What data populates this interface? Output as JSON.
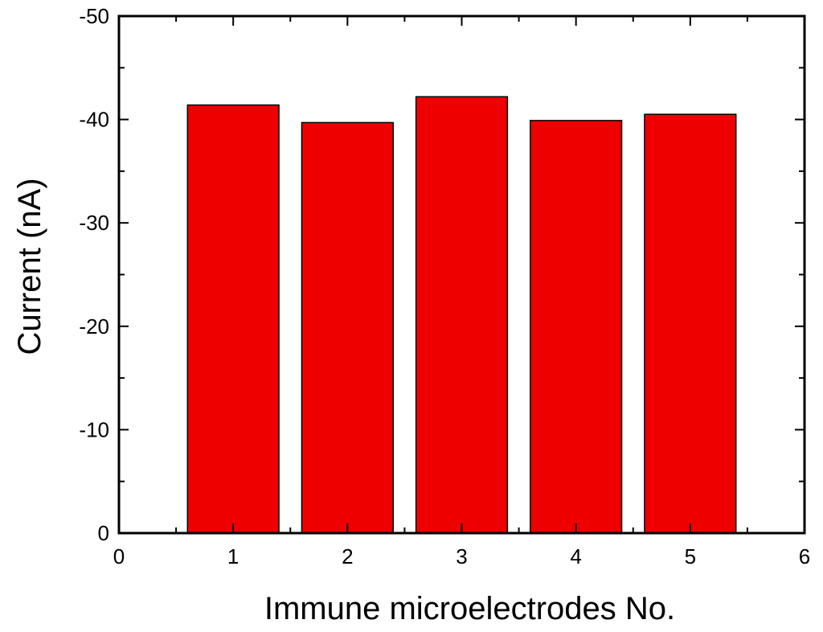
{
  "chart_data": {
    "type": "bar",
    "title": "",
    "xlabel": "Immune microelectrodes No.",
    "ylabel": "Current (nA)",
    "x": [
      1,
      2,
      3,
      4,
      5
    ],
    "values": [
      -41.4,
      -39.7,
      -42.2,
      -39.9,
      -40.5
    ],
    "xlim": [
      0,
      6
    ],
    "ylim": [
      0,
      -50
    ],
    "y_axis_reversed": true,
    "xticks": [
      "0",
      "1",
      "2",
      "3",
      "4",
      "5",
      "6"
    ],
    "yticks": [
      "0",
      "-10",
      "-20",
      "-30",
      "-40",
      "-50"
    ],
    "bar_color": "#ee0000",
    "grid": false,
    "legend": "none"
  }
}
